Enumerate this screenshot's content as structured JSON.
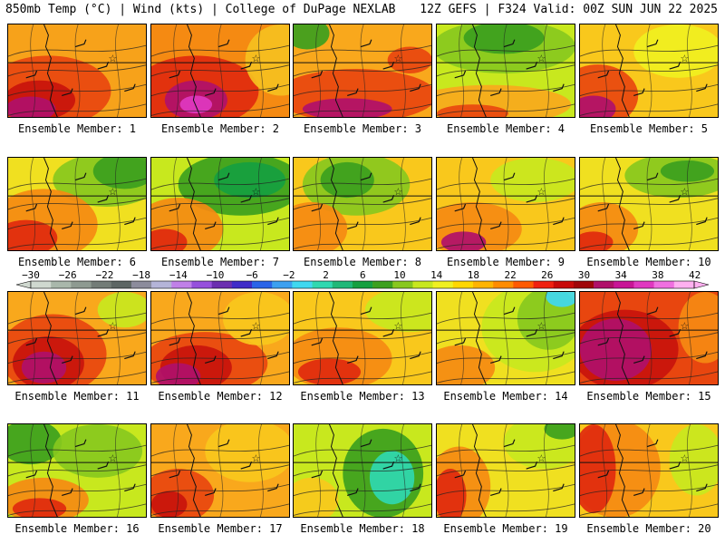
{
  "header": {
    "left": "850mb Temp (°C) | Wind (kts) | College of DuPage NEXLAB",
    "right": "12Z GEFS | F324 Valid: 00Z SUN JUN 22 2025"
  },
  "colorbar": {
    "labels": [
      "−30",
      "−26",
      "−22",
      "−18",
      "−14",
      "−10",
      "−6",
      "−2",
      "2",
      "6",
      "10",
      "14",
      "18",
      "22",
      "26",
      "30",
      "34",
      "38",
      "42"
    ],
    "colors": [
      "#cfd8cf",
      "#a9b7ab",
      "#8e9a91",
      "#737c77",
      "#5d6664",
      "#8c8c9c",
      "#b4b4d8",
      "#c080e8",
      "#9650dc",
      "#6b2fb0",
      "#3f2cc8",
      "#2a64e8",
      "#3ca0f0",
      "#40d8f0",
      "#30d8b0",
      "#20b878",
      "#16a040",
      "#3ca01e",
      "#88c81e",
      "#c8e81e",
      "#f0f020",
      "#ffd700",
      "#ffb400",
      "#ff8c00",
      "#ff5a00",
      "#f02010",
      "#c80a0a",
      "#a0060a",
      "#b0106a",
      "#c81496",
      "#e038c0",
      "#f070e0",
      "#ffb0f0"
    ]
  },
  "members": [
    {
      "label": "Ensemble Member: 1",
      "base": "#f7a21a",
      "blobs": [
        {
          "c": "#e8460f",
          "cx": 45,
          "cy": 75,
          "rx": 70,
          "ry": 40
        },
        {
          "c": "#c8140c",
          "cx": 35,
          "cy": 85,
          "rx": 40,
          "ry": 22
        },
        {
          "c": "#b0106a",
          "cx": 25,
          "cy": 95,
          "rx": 28,
          "ry": 14
        }
      ]
    },
    {
      "label": "Ensemble Member: 2",
      "base": "#f58a12",
      "blobs": [
        {
          "c": "#e02a0e",
          "cx": 50,
          "cy": 75,
          "rx": 70,
          "ry": 40
        },
        {
          "c": "#b0106a",
          "cx": 50,
          "cy": 85,
          "rx": 35,
          "ry": 22
        },
        {
          "c": "#e038c0",
          "cx": 50,
          "cy": 90,
          "rx": 18,
          "ry": 10
        },
        {
          "c": "#f5c020",
          "cx": 145,
          "cy": 40,
          "rx": 40,
          "ry": 40
        }
      ]
    },
    {
      "label": "Ensemble Member: 3",
      "base": "#f9a81c",
      "blobs": [
        {
          "c": "#3ca01e",
          "cx": 15,
          "cy": 10,
          "rx": 25,
          "ry": 18
        },
        {
          "c": "#e8460f",
          "cx": 70,
          "cy": 80,
          "rx": 90,
          "ry": 30
        },
        {
          "c": "#b0106a",
          "cx": 60,
          "cy": 95,
          "rx": 50,
          "ry": 12
        },
        {
          "c": "#e8460f",
          "cx": 130,
          "cy": 40,
          "rx": 25,
          "ry": 15
        }
      ]
    },
    {
      "label": "Ensemble Member: 4",
      "base": "#c8e81e",
      "blobs": [
        {
          "c": "#88c81e",
          "cx": 75,
          "cy": 25,
          "rx": 80,
          "ry": 30
        },
        {
          "c": "#3ca01e",
          "cx": 75,
          "cy": 15,
          "rx": 45,
          "ry": 18
        },
        {
          "c": "#f9a81c",
          "cx": 60,
          "cy": 90,
          "rx": 90,
          "ry": 22
        },
        {
          "c": "#e8460f",
          "cx": 40,
          "cy": 100,
          "rx": 40,
          "ry": 10
        }
      ]
    },
    {
      "label": "Ensemble Member: 5",
      "base": "#f9c81c",
      "blobs": [
        {
          "c": "#e8460f",
          "cx": 20,
          "cy": 80,
          "rx": 45,
          "ry": 35
        },
        {
          "c": "#b0106a",
          "cx": 15,
          "cy": 95,
          "rx": 25,
          "ry": 15
        },
        {
          "c": "#f0f020",
          "cx": 110,
          "cy": 30,
          "rx": 50,
          "ry": 30
        }
      ]
    },
    {
      "label": "Ensemble Member: 6",
      "base": "#f0e020",
      "blobs": [
        {
          "c": "#88c81e",
          "cx": 110,
          "cy": 25,
          "rx": 60,
          "ry": 30
        },
        {
          "c": "#3ca01e",
          "cx": 130,
          "cy": 15,
          "rx": 35,
          "ry": 20
        },
        {
          "c": "#f58a12",
          "cx": 40,
          "cy": 75,
          "rx": 60,
          "ry": 40
        },
        {
          "c": "#e02a0e",
          "cx": 20,
          "cy": 90,
          "rx": 35,
          "ry": 20
        }
      ]
    },
    {
      "label": "Ensemble Member: 7",
      "base": "#c8e81e",
      "blobs": [
        {
          "c": "#3ca01e",
          "cx": 100,
          "cy": 30,
          "rx": 70,
          "ry": 35
        },
        {
          "c": "#16a040",
          "cx": 110,
          "cy": 25,
          "rx": 40,
          "ry": 20
        },
        {
          "c": "#f58a12",
          "cx": 30,
          "cy": 80,
          "rx": 50,
          "ry": 35
        },
        {
          "c": "#e02a0e",
          "cx": 15,
          "cy": 95,
          "rx": 25,
          "ry": 15
        }
      ]
    },
    {
      "label": "Ensemble Member: 8",
      "base": "#f9c81c",
      "blobs": [
        {
          "c": "#88c81e",
          "cx": 70,
          "cy": 30,
          "rx": 60,
          "ry": 35
        },
        {
          "c": "#3ca01e",
          "cx": 60,
          "cy": 25,
          "rx": 30,
          "ry": 20
        },
        {
          "c": "#f58a12",
          "cx": 20,
          "cy": 80,
          "rx": 40,
          "ry": 30
        }
      ]
    },
    {
      "label": "Ensemble Member: 9",
      "base": "#f9c81c",
      "blobs": [
        {
          "c": "#c8e81e",
          "cx": 110,
          "cy": 25,
          "rx": 50,
          "ry": 25
        },
        {
          "c": "#f58a12",
          "cx": 40,
          "cy": 80,
          "rx": 55,
          "ry": 30
        },
        {
          "c": "#b0106a",
          "cx": 30,
          "cy": 95,
          "rx": 25,
          "ry": 12
        }
      ]
    },
    {
      "label": "Ensemble Member: 10",
      "base": "#f0e020",
      "blobs": [
        {
          "c": "#88c81e",
          "cx": 110,
          "cy": 20,
          "rx": 60,
          "ry": 25
        },
        {
          "c": "#3ca01e",
          "cx": 120,
          "cy": 15,
          "rx": 30,
          "ry": 12
        },
        {
          "c": "#f58a12",
          "cx": 25,
          "cy": 80,
          "rx": 40,
          "ry": 30
        },
        {
          "c": "#e02a0e",
          "cx": 15,
          "cy": 95,
          "rx": 22,
          "ry": 12
        }
      ]
    },
    {
      "label": "Ensemble Member: 11",
      "base": "#f9a81c",
      "blobs": [
        {
          "c": "#e8460f",
          "cx": 50,
          "cy": 70,
          "rx": 60,
          "ry": 45
        },
        {
          "c": "#c8140c",
          "cx": 45,
          "cy": 80,
          "rx": 40,
          "ry": 30
        },
        {
          "c": "#b0106a",
          "cx": 40,
          "cy": 85,
          "rx": 25,
          "ry": 18
        },
        {
          "c": "#c8e81e",
          "cx": 130,
          "cy": 20,
          "rx": 30,
          "ry": 20
        }
      ]
    },
    {
      "label": "Ensemble Member: 12",
      "base": "#f9a81c",
      "blobs": [
        {
          "c": "#e8460f",
          "cx": 60,
          "cy": 80,
          "rx": 70,
          "ry": 35
        },
        {
          "c": "#c8140c",
          "cx": 50,
          "cy": 85,
          "rx": 40,
          "ry": 25
        },
        {
          "c": "#b0106a",
          "cx": 30,
          "cy": 95,
          "rx": 25,
          "ry": 15
        },
        {
          "c": "#f9c81c",
          "cx": 120,
          "cy": 30,
          "rx": 40,
          "ry": 30
        }
      ]
    },
    {
      "label": "Ensemble Member: 13",
      "base": "#f9c81c",
      "blobs": [
        {
          "c": "#c8e81e",
          "cx": 130,
          "cy": 20,
          "rx": 50,
          "ry": 25
        },
        {
          "c": "#f58a12",
          "cx": 50,
          "cy": 75,
          "rx": 60,
          "ry": 35
        },
        {
          "c": "#e02a0e",
          "cx": 40,
          "cy": 90,
          "rx": 35,
          "ry": 15
        }
      ]
    },
    {
      "label": "Ensemble Member: 14",
      "base": "#f0e020",
      "blobs": [
        {
          "c": "#c8e81e",
          "cx": 110,
          "cy": 40,
          "rx": 60,
          "ry": 50
        },
        {
          "c": "#88c81e",
          "cx": 125,
          "cy": 30,
          "rx": 35,
          "ry": 35
        },
        {
          "c": "#40d8f0",
          "cx": 140,
          "cy": 5,
          "rx": 18,
          "ry": 12
        },
        {
          "c": "#f58a12",
          "cx": 25,
          "cy": 85,
          "rx": 40,
          "ry": 25
        }
      ]
    },
    {
      "label": "Ensemble Member: 15",
      "base": "#e8460f",
      "blobs": [
        {
          "c": "#c8140c",
          "cx": 50,
          "cy": 65,
          "rx": 60,
          "ry": 45
        },
        {
          "c": "#b0106a",
          "cx": 40,
          "cy": 65,
          "rx": 40,
          "ry": 35
        },
        {
          "c": "#f58a12",
          "cx": 140,
          "cy": 40,
          "rx": 30,
          "ry": 40
        }
      ]
    },
    {
      "label": "Ensemble Member: 16",
      "base": "#c8e81e",
      "blobs": [
        {
          "c": "#3ca01e",
          "cx": 25,
          "cy": 20,
          "rx": 35,
          "ry": 25
        },
        {
          "c": "#88c81e",
          "cx": 100,
          "cy": 30,
          "rx": 50,
          "ry": 30
        },
        {
          "c": "#f58a12",
          "cx": 40,
          "cy": 85,
          "rx": 50,
          "ry": 25
        },
        {
          "c": "#e02a0e",
          "cx": 35,
          "cy": 95,
          "rx": 30,
          "ry": 12
        }
      ]
    },
    {
      "label": "Ensemble Member: 17",
      "base": "#f9a81c",
      "blobs": [
        {
          "c": "#f9c81c",
          "cx": 110,
          "cy": 30,
          "rx": 50,
          "ry": 35
        },
        {
          "c": "#e8460f",
          "cx": 30,
          "cy": 80,
          "rx": 40,
          "ry": 30
        },
        {
          "c": "#c8140c",
          "cx": 20,
          "cy": 90,
          "rx": 20,
          "ry": 15
        }
      ]
    },
    {
      "label": "Ensemble Member: 18",
      "base": "#c8e81e",
      "blobs": [
        {
          "c": "#3ca01e",
          "cx": 100,
          "cy": 55,
          "rx": 45,
          "ry": 50
        },
        {
          "c": "#30d8b0",
          "cx": 110,
          "cy": 60,
          "rx": 25,
          "ry": 30
        },
        {
          "c": "#f9c81c",
          "cx": 20,
          "cy": 85,
          "rx": 30,
          "ry": 25
        }
      ]
    },
    {
      "label": "Ensemble Member: 19",
      "base": "#f0e020",
      "blobs": [
        {
          "c": "#c8e81e",
          "cx": 120,
          "cy": 20,
          "rx": 45,
          "ry": 30
        },
        {
          "c": "#3ca01e",
          "cx": 140,
          "cy": 5,
          "rx": 20,
          "ry": 12
        },
        {
          "c": "#f58a12",
          "cx": 25,
          "cy": 70,
          "rx": 35,
          "ry": 45
        },
        {
          "c": "#e02a0e",
          "cx": 15,
          "cy": 80,
          "rx": 18,
          "ry": 30
        }
      ]
    },
    {
      "label": "Ensemble Member: 20",
      "base": "#f9c81c",
      "blobs": [
        {
          "c": "#f58a12",
          "cx": 40,
          "cy": 50,
          "rx": 50,
          "ry": 55
        },
        {
          "c": "#e02a0e",
          "cx": 15,
          "cy": 50,
          "rx": 25,
          "ry": 50
        },
        {
          "c": "#c8e81e",
          "cx": 130,
          "cy": 40,
          "rx": 30,
          "ry": 40
        }
      ]
    }
  ]
}
